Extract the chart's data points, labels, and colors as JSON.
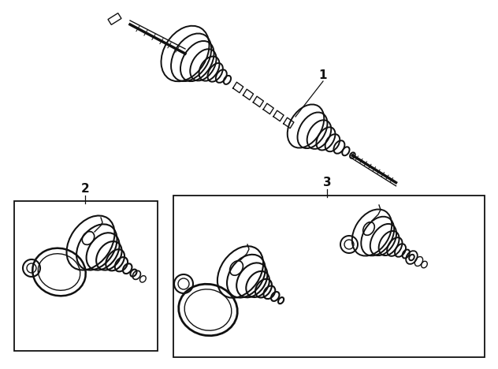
{
  "bg_color": "#ffffff",
  "line_color": "#111111",
  "fig_width": 6.32,
  "fig_height": 4.68,
  "dpi": 100,
  "label1": "1",
  "label2": "2",
  "label3": "3"
}
